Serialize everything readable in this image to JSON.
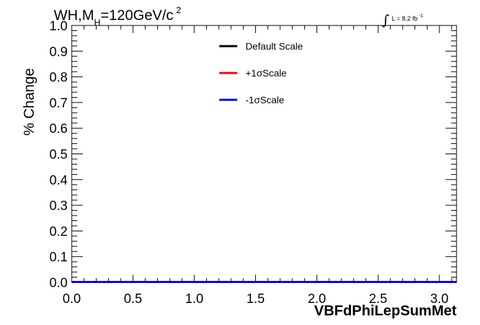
{
  "chart_data": {
    "type": "line",
    "title": {
      "pre": "WH,M",
      "sub": "H",
      "mid": "=120GeV/c",
      "sup": "2"
    },
    "lumi": {
      "integral": "∫",
      "text": "L = 8.2 fb",
      "sup": "-1"
    },
    "xlabel": "VBFdPhiLepSumMet",
    "ylabel": "% Change",
    "xlim": [
      0,
      3.14
    ],
    "ylim": [
      0,
      1.0
    ],
    "x_ticks": [
      {
        "value": 0.0,
        "label": "0.0"
      },
      {
        "value": 0.5,
        "label": "0.5"
      },
      {
        "value": 1.0,
        "label": "1.0"
      },
      {
        "value": 1.5,
        "label": "1.5"
      },
      {
        "value": 2.0,
        "label": "2.0"
      },
      {
        "value": 2.5,
        "label": "2.5"
      },
      {
        "value": 3.0,
        "label": "3.0"
      }
    ],
    "y_ticks": [
      {
        "value": 0.0,
        "label": "0.0"
      },
      {
        "value": 0.1,
        "label": "0.1"
      },
      {
        "value": 0.2,
        "label": "0.2"
      },
      {
        "value": 0.3,
        "label": "0.3"
      },
      {
        "value": 0.4,
        "label": "0.4"
      },
      {
        "value": 0.5,
        "label": "0.5"
      },
      {
        "value": 0.6,
        "label": "0.6"
      },
      {
        "value": 0.7,
        "label": "0.7"
      },
      {
        "value": 0.8,
        "label": "0.8"
      },
      {
        "value": 0.9,
        "label": "0.9"
      },
      {
        "value": 1.0,
        "label": "1.0"
      }
    ],
    "legend_position": "top-center",
    "grid": false,
    "series": [
      {
        "name": "Default Scale",
        "color": "#000000",
        "x": [
          0,
          3.14
        ],
        "y": [
          0,
          0
        ]
      },
      {
        "name": "+1σScale",
        "color": "#ff0000",
        "x": [
          0,
          3.14
        ],
        "y": [
          0,
          0
        ]
      },
      {
        "name": "-1σScale",
        "color": "#0000ff",
        "x": [
          0,
          3.14
        ],
        "y": [
          0,
          0
        ]
      }
    ]
  }
}
